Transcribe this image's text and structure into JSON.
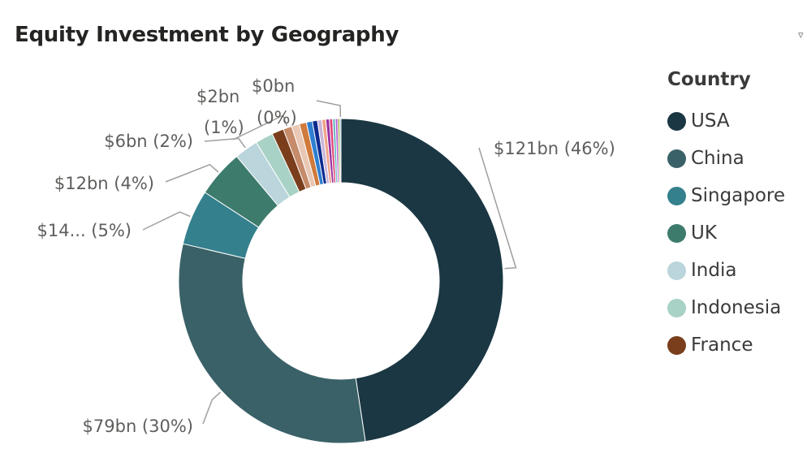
{
  "title": "Equity Investment by Geography",
  "filter_icon": "filter-icon",
  "legend": {
    "title": "Country",
    "items": [
      {
        "label": "USA",
        "color": "#1a3743"
      },
      {
        "label": "China",
        "color": "#3a6168"
      },
      {
        "label": "Singapore",
        "color": "#34808d"
      },
      {
        "label": "UK",
        "color": "#3d7b6d"
      },
      {
        "label": "India",
        "color": "#bad5dc"
      },
      {
        "label": "Indonesia",
        "color": "#a9d2c6"
      },
      {
        "label": "France",
        "color": "#7a3e1c"
      }
    ]
  },
  "chart_data": {
    "type": "donut",
    "title": "Equity Investment by Geography",
    "legend_title": "Country",
    "legend_position": "right",
    "unit": "$bn",
    "slices": [
      {
        "name": "USA",
        "value": 121,
        "percent": 46,
        "color": "#1a3743",
        "label": "$121bn (46%)"
      },
      {
        "name": "China",
        "value": 79,
        "percent": 30,
        "color": "#3a6168",
        "label": "$79bn (30%)"
      },
      {
        "name": "Singapore",
        "value": 14,
        "percent": 5,
        "color": "#34808d",
        "label": "$14... (5%)"
      },
      {
        "name": "UK",
        "value": 12,
        "percent": 4,
        "color": "#3d7b6d",
        "label": "$12bn (4%)"
      },
      {
        "name": "India",
        "value": 6,
        "percent": 2,
        "color": "#bad5dc",
        "label": "$6bn (2%)"
      },
      {
        "name": "Indonesia",
        "value": 4.5,
        "percent": 2,
        "color": "#a9d2c6",
        "label": ""
      },
      {
        "name": "France",
        "value": 3,
        "percent": 1,
        "color": "#7a3e1c",
        "label": ""
      },
      {
        "name": "",
        "value": 2.2,
        "percent": 1,
        "color": "#c58b6a",
        "label": "$2bn (1%)"
      },
      {
        "name": "",
        "value": 2.0,
        "percent": 1,
        "color": "#e8c7b4",
        "label": ""
      },
      {
        "name": "",
        "value": 1.8,
        "percent": 1,
        "color": "#d07a3c",
        "label": ""
      },
      {
        "name": "",
        "value": 1.5,
        "percent": 1,
        "color": "#2f7fd1",
        "label": ""
      },
      {
        "name": "",
        "value": 1.3,
        "percent": 0,
        "color": "#0e2a8f",
        "label": ""
      },
      {
        "name": "",
        "value": 1.1,
        "percent": 0,
        "color": "#c9b6d9",
        "label": ""
      },
      {
        "name": "",
        "value": 1.0,
        "percent": 0,
        "color": "#f0a38b",
        "label": ""
      },
      {
        "name": "",
        "value": 0.9,
        "percent": 0,
        "color": "#9a2fa0",
        "label": ""
      },
      {
        "name": "",
        "value": 0.8,
        "percent": 0,
        "color": "#e0457b",
        "label": ""
      },
      {
        "name": "",
        "value": 0.7,
        "percent": 0,
        "color": "#6fb8c2",
        "label": ""
      },
      {
        "name": "",
        "value": 0.6,
        "percent": 0,
        "color": "#b25ad8",
        "label": ""
      },
      {
        "name": "",
        "value": 0.5,
        "percent": 0,
        "color": "#9fa93a",
        "label": ""
      },
      {
        "name": "",
        "value": 0.3,
        "percent": 0,
        "color": "#4aa0a8",
        "label": "$0bn (0%)"
      }
    ]
  }
}
